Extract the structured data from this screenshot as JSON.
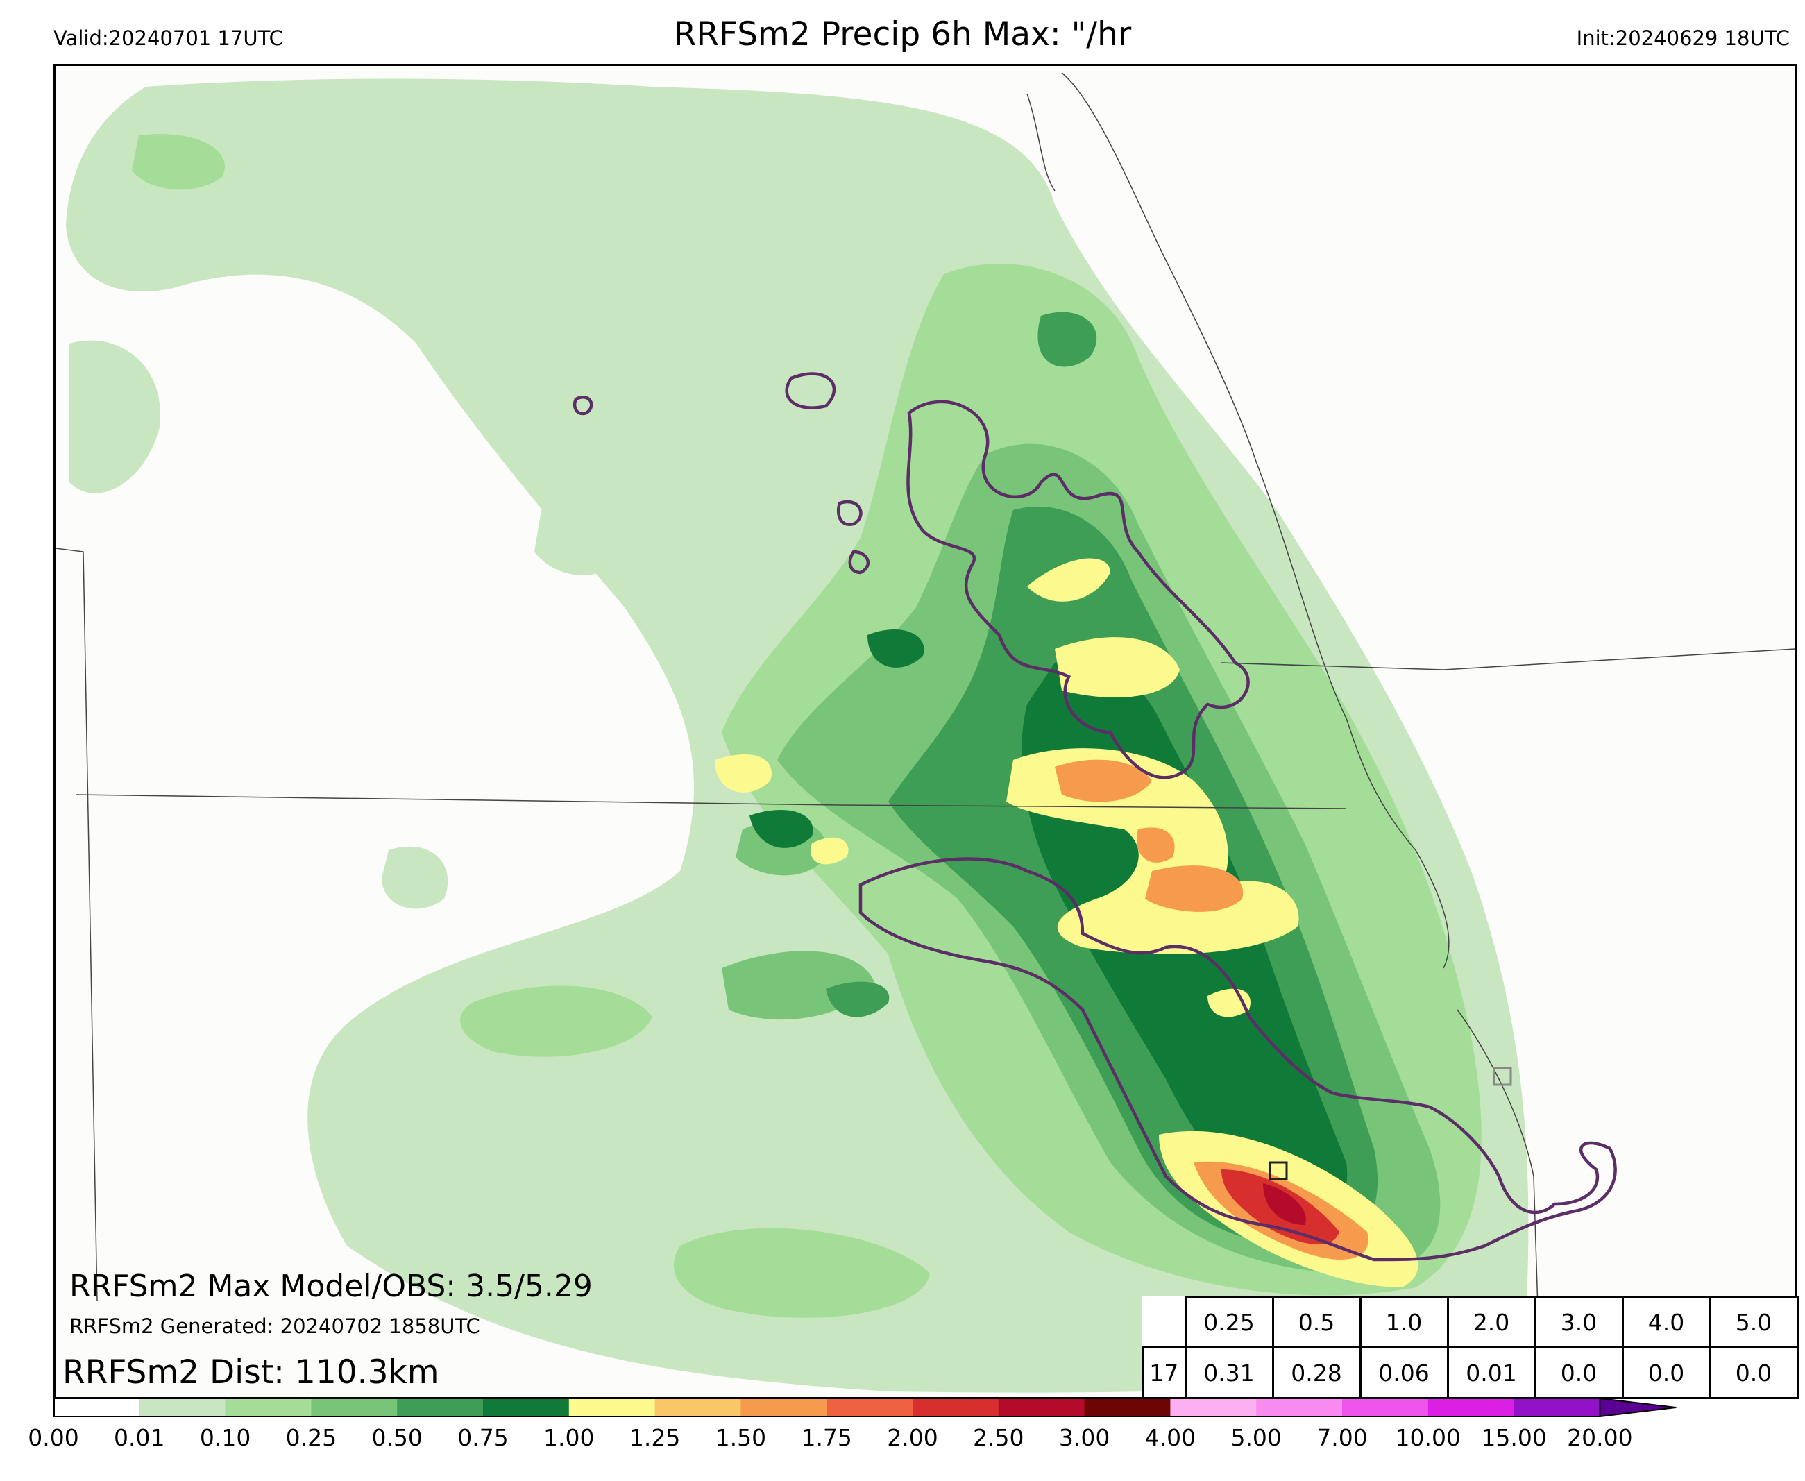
{
  "header": {
    "valid": "Valid:20240701 17UTC",
    "title": "RRFSm2 Precip 6h Max: \"/hr",
    "init": "Init:20240629 18UTC"
  },
  "stats": {
    "max_model_obs": "RRFSm2 Max Model/OBS: 3.5/5.29",
    "generated": "RRFSm2 Generated: 20240702 1858UTC",
    "distance": "RRFSm2 Dist: 110.3km"
  },
  "threshold_table": {
    "thresholds": [
      "0.25",
      "0.5",
      "1.0",
      "2.0",
      "3.0",
      "4.0",
      "5.0"
    ],
    "row_label": "17",
    "values": [
      "0.31",
      "0.28",
      "0.06",
      "0.01",
      "0.0",
      "0.0",
      "0.0"
    ]
  },
  "colorbar": {
    "ticks": [
      "0.00",
      "0.01",
      "0.10",
      "0.25",
      "0.50",
      "0.75",
      "1.00",
      "1.25",
      "1.50",
      "1.75",
      "2.00",
      "2.50",
      "3.00",
      "4.00",
      "5.00",
      "7.00",
      "10.00",
      "15.00",
      "20.00"
    ],
    "colors": [
      "#ffffff",
      "#c8e6c0",
      "#a4dd98",
      "#78c479",
      "#3f9e55",
      "#107a38",
      "#fcf98e",
      "#f9c766",
      "#f69a4e",
      "#f0613f",
      "#d62f2e",
      "#b50b2b",
      "#6e0505",
      "#fdb0f1",
      "#f98bee",
      "#ee55ea",
      "#db20e3",
      "#9312c8",
      "#5a0092"
    ]
  },
  "colors": {
    "obs_contour": "#5c2d66",
    "state_border": "#444444",
    "map_background": "#fcfcfa"
  }
}
